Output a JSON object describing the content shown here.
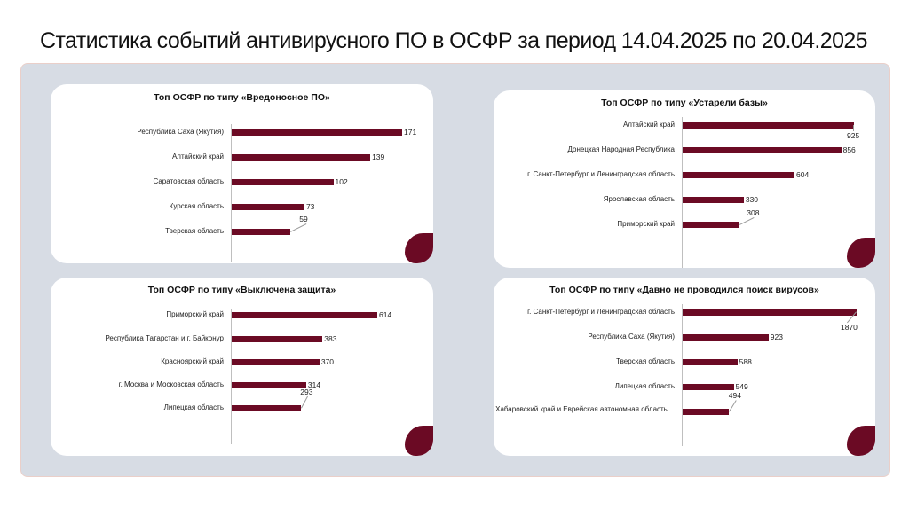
{
  "title": "Статистика событий антивирусного ПО в ОСФР за период 14.04.2025 по 20.04.2025",
  "colors": {
    "bar": "#6b0a24",
    "background": "#d7dce4",
    "panel": "#ffffff"
  },
  "chart_data": [
    {
      "type": "bar",
      "orientation": "horizontal",
      "title": "Топ ОСФР по типу «Вредоносное ПО»",
      "categories": [
        "Республика Саха (Якутия)",
        "Алтайский край",
        "Саратовская область",
        "Курская область",
        "Тверская область"
      ],
      "values": [
        171,
        139,
        102,
        73,
        59
      ],
      "xlim": [
        0,
        171
      ],
      "grid": false,
      "legend": "none"
    },
    {
      "type": "bar",
      "orientation": "horizontal",
      "title": "Топ ОСФР по типу «Устарели базы»",
      "categories": [
        "Алтайский край",
        "Донецкая Народная Республика",
        "г. Санкт-Петербург и Ленинградская область",
        "Ярославская область",
        "Приморский край"
      ],
      "values": [
        925,
        856,
        604,
        330,
        308
      ],
      "xlim": [
        0,
        925
      ],
      "grid": false,
      "legend": "none"
    },
    {
      "type": "bar",
      "orientation": "horizontal",
      "title": "Топ ОСФР по типу «Выключена защита»",
      "categories": [
        "Приморский край",
        "Республика Татарстан и г. Байконур",
        "Красноярский край",
        "г. Москва и Московская область",
        "Липецкая область"
      ],
      "values": [
        614,
        383,
        370,
        314,
        293
      ],
      "xlim": [
        0,
        614
      ],
      "grid": false,
      "legend": "none"
    },
    {
      "type": "bar",
      "orientation": "horizontal",
      "title": "Топ ОСФР по типу «Давно не проводился поиск вирусов»",
      "categories": [
        "г. Санкт-Петербург и Ленинградская область",
        "Республика Саха (Якутия)",
        "Тверская область",
        "Липецкая область",
        "Хабаровский край и Еврейская автономная область"
      ],
      "values": [
        1870,
        923,
        588,
        549,
        494
      ],
      "xlim": [
        0,
        1870
      ],
      "grid": false,
      "legend": "none"
    }
  ]
}
